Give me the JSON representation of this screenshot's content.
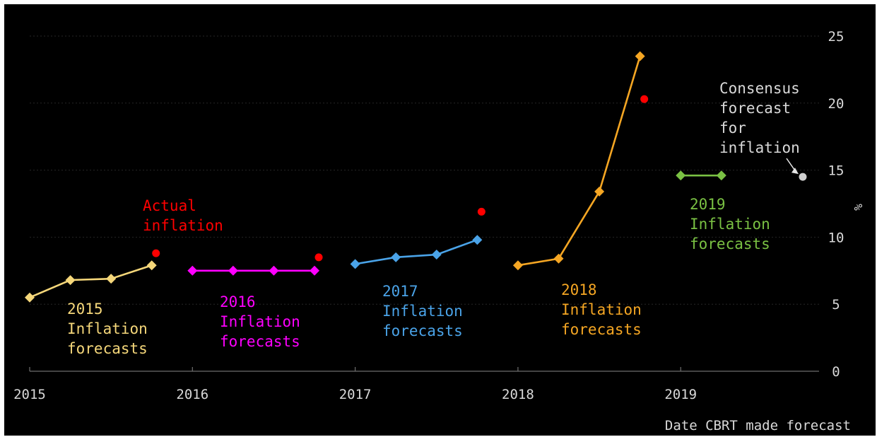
{
  "chart_data": {
    "type": "line",
    "xlabel": "Date CBRT made forecast",
    "ylabel": "%",
    "xlim": [
      2015.0,
      2019.85
    ],
    "ylim": [
      0,
      25
    ],
    "y_ticks": [
      0,
      5,
      10,
      15,
      20,
      25
    ],
    "y_tick_labels": [
      "0",
      "5",
      "10",
      "15",
      "20",
      "25"
    ],
    "x_ticks": [
      2015,
      2016,
      2017,
      2018,
      2019
    ],
    "x_tick_labels": [
      "2015",
      "2016",
      "2017",
      "2018",
      "2019"
    ],
    "grid": true,
    "y_axis_side": "right",
    "series": [
      {
        "name": "2015 Inflation forecasts",
        "label_lines": [
          "2015",
          "Inflation",
          "forecasts"
        ],
        "color": "#f5d77a",
        "x": [
          "2015-01",
          "2015-04",
          "2015-07",
          "2015-10"
        ],
        "y": [
          5.5,
          6.8,
          6.9,
          7.9
        ]
      },
      {
        "name": "2016 Inflation forecasts",
        "label_lines": [
          "2016",
          "Inflation",
          "forecasts"
        ],
        "color": "#ff00ff",
        "x": [
          "2016-01",
          "2016-04",
          "2016-07",
          "2016-10"
        ],
        "y": [
          7.5,
          7.5,
          7.5,
          7.5
        ]
      },
      {
        "name": "2017 Inflation forecasts",
        "label_lines": [
          "2017",
          "Inflation",
          "forecasts"
        ],
        "color": "#4aa3e8",
        "x": [
          "2017-01",
          "2017-04",
          "2017-07",
          "2017-10"
        ],
        "y": [
          8.0,
          8.5,
          8.7,
          9.8
        ]
      },
      {
        "name": "2018 Inflation forecasts",
        "label_lines": [
          "2018",
          "Inflation",
          "forecasts"
        ],
        "color": "#f5a623",
        "x": [
          "2018-01",
          "2018-04",
          "2018-07",
          "2018-10"
        ],
        "y": [
          7.9,
          8.4,
          13.4,
          23.5
        ]
      },
      {
        "name": "2019 Inflation forecasts",
        "label_lines": [
          "2019",
          "Inflation",
          "forecasts"
        ],
        "color": "#7ac143",
        "x": [
          "2019-01",
          "2019-04"
        ],
        "y": [
          14.6,
          14.6
        ]
      }
    ],
    "actual_inflation": {
      "name": "Actual inflation",
      "label_lines": [
        "Actual",
        "inflation"
      ],
      "color": "#ff0000",
      "x": [
        "2015-10",
        "2016-10",
        "2017-10",
        "2018-10"
      ],
      "y": [
        8.8,
        8.5,
        11.9,
        20.3
      ]
    },
    "consensus": {
      "name": "Consensus forecast for inflation",
      "label_lines": [
        "Consensus",
        "forecast",
        "for",
        "inflation"
      ],
      "color": "#cfcfcf",
      "x": "2019-10",
      "y": 14.5
    }
  }
}
